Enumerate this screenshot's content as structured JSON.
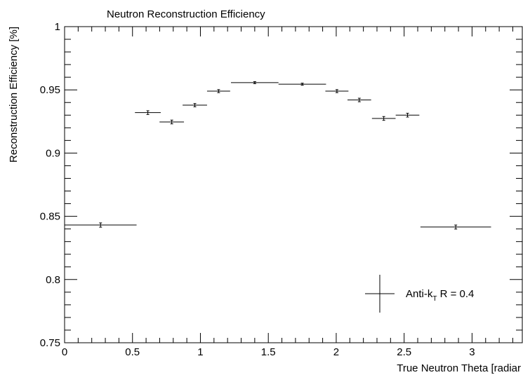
{
  "chart_data": {
    "type": "errorbar",
    "title": "Neutron Reconstruction Efficiency",
    "xlabel": "True Neutron Theta [radiar",
    "ylabel": "Reconstruction Efficiency [%]",
    "xlim": [
      0,
      3.37
    ],
    "ylim": [
      0.75,
      1
    ],
    "xticks": [
      0,
      0.5,
      1,
      1.5,
      2,
      2.5,
      3
    ],
    "yticks": [
      0.75,
      0.8,
      0.85,
      0.9,
      0.95,
      1
    ],
    "xminorticks": [
      0.1,
      0.2,
      0.3,
      0.4,
      0.6,
      0.7,
      0.8,
      0.9,
      1.1,
      1.2,
      1.3,
      1.4,
      1.6,
      1.7,
      1.8,
      1.9,
      2.1,
      2.2,
      2.3,
      2.4,
      2.6,
      2.7,
      2.8,
      2.9,
      3.1,
      3.2,
      3.3
    ],
    "yminorticks": [
      0.76,
      0.77,
      0.78,
      0.79,
      0.81,
      0.82,
      0.83,
      0.84,
      0.86,
      0.87,
      0.88,
      0.89,
      0.91,
      0.92,
      0.93,
      0.94,
      0.96,
      0.97,
      0.98,
      0.99
    ],
    "legend_parts": [
      "Anti-k",
      "T",
      " R = 0.4"
    ],
    "color": "#000000",
    "x": [
      0.265,
      0.613,
      0.789,
      0.959,
      1.134,
      1.4,
      1.75,
      2.005,
      2.17,
      2.35,
      2.525,
      2.88
    ],
    "xerr": [
      0.265,
      0.095,
      0.09,
      0.09,
      0.085,
      0.175,
      0.175,
      0.085,
      0.087,
      0.087,
      0.087,
      0.26
    ],
    "values": [
      0.8431,
      0.932,
      0.9246,
      0.9379,
      0.949,
      0.9557,
      0.9545,
      0.949,
      0.942,
      0.9274,
      0.93,
      0.8415
    ],
    "yerr": [
      0.0017,
      0.0015,
      0.0015,
      0.0013,
      0.0012,
      0.0008,
      0.0008,
      0.0012,
      0.0014,
      0.0015,
      0.0015,
      0.0016
    ]
  }
}
